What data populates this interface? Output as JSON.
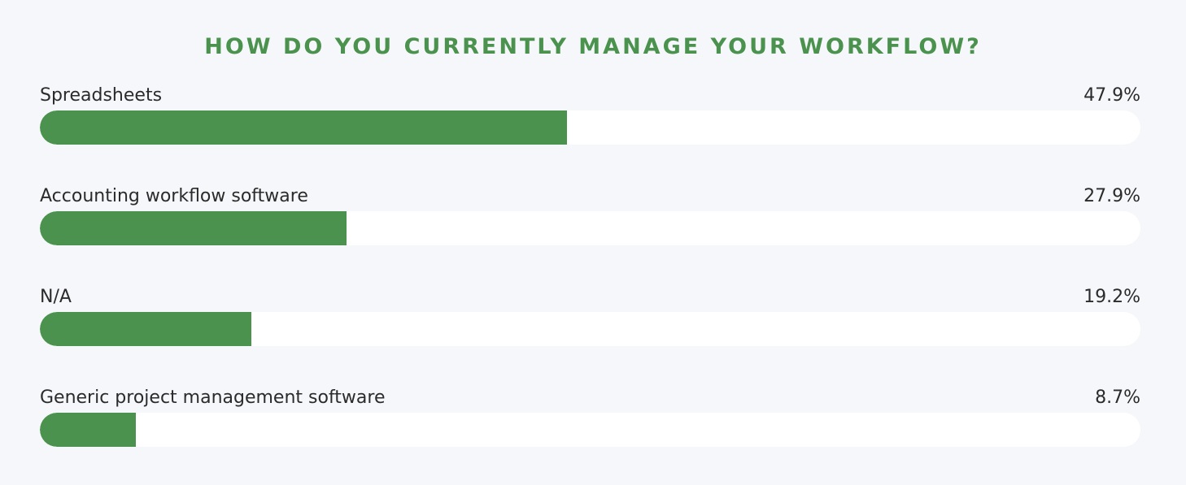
{
  "chart_data": {
    "type": "bar",
    "orientation": "horizontal",
    "title": "HOW DO YOU CURRENTLY MANAGE YOUR WORKFLOW?",
    "categories": [
      "Spreadsheets",
      "Accounting workflow software",
      "N/A",
      "Generic project management software"
    ],
    "values": [
      47.9,
      27.9,
      19.2,
      8.7
    ],
    "value_labels": [
      "47.9%",
      "27.9%",
      "19.2%",
      "8.7%"
    ],
    "xlim": [
      0,
      100
    ],
    "unit": "%",
    "grid": false,
    "legend": "none",
    "colors": {
      "title": "#4a924d",
      "bar": "#4a924d",
      "track": "#ffffff",
      "background": "#f5f7fa",
      "text": "#2b2b2b"
    }
  }
}
